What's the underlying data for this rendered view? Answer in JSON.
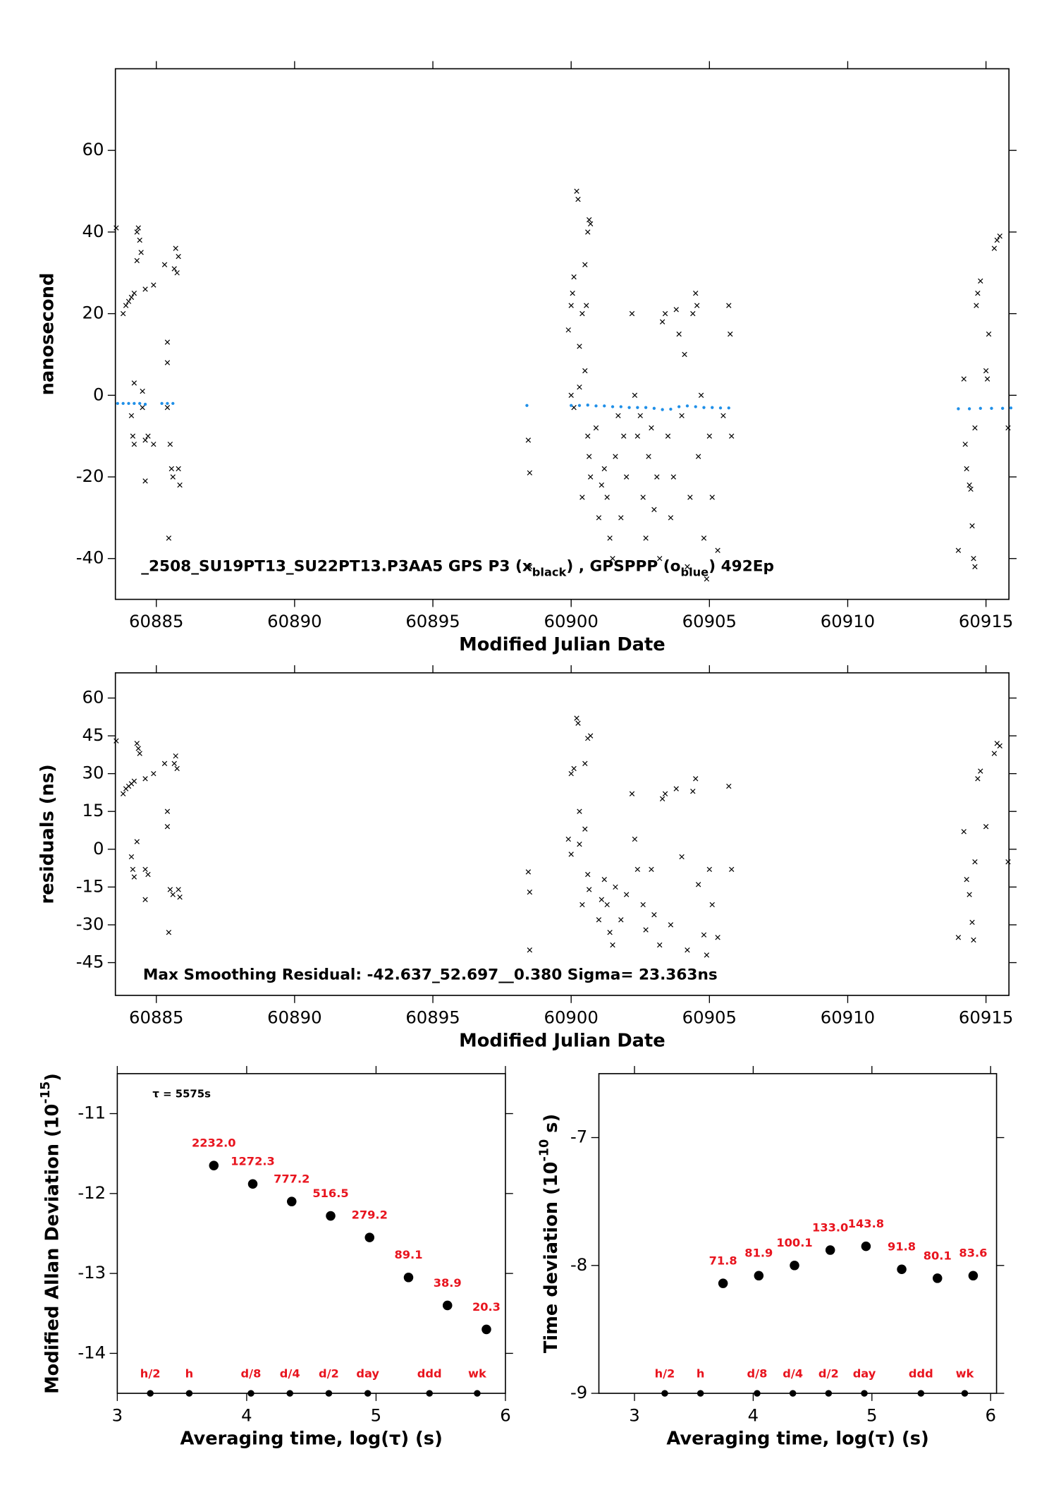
{
  "chart_data": [
    {
      "type": "scatter",
      "xlabel": "Modified Julian Date",
      "ylabel": "nanosecond",
      "xlim": [
        60883.52,
        60915.83
      ],
      "ylim": [
        -50,
        80
      ],
      "xticks": [
        60885,
        60890,
        60895,
        60900,
        60905,
        60910,
        60915
      ],
      "yticks": [
        -40,
        -20,
        0,
        20,
        40,
        60
      ],
      "annotation": [
        {
          "text": "_2508_SU19PT13_SU22PT13.P3AA5   GPS P3 (x"
        },
        {
          "text": "black",
          "sub": true
        },
        {
          "text": ") , GPSPPP (o"
        },
        {
          "text": "blue",
          "sub": true
        },
        {
          "text": ")  492Ep"
        }
      ],
      "series": [
        {
          "color": "#000000",
          "marker": "x",
          "x": [
            60883.55,
            60883.8,
            60883.9,
            60884.0,
            60884.1,
            60884.2,
            60884.3,
            60884.35,
            60884.4,
            60884.45,
            60884.3,
            60884.6,
            60884.9,
            60885.3,
            60885.7,
            60885.8,
            60885.75,
            60885.65,
            60884.2,
            60884.1,
            60884.15,
            60884.2,
            60884.5,
            60884.6,
            60884.7,
            60884.9,
            60884.6,
            60885.4,
            60885.4,
            60885.5,
            60885.55,
            60885.6,
            60885.8,
            60885.85,
            60885.45,
            60884.5,
            60885.4,
            60898.45,
            60898.5,
            60898.5,
            60899.9,
            60900.0,
            60900.05,
            60900.1,
            60900.2,
            60900.25,
            60900.5,
            60900.6,
            60900.7,
            60900.65,
            60900.3,
            60900.4,
            60900.55,
            60900.0,
            60900.1,
            60900.3,
            60900.5,
            60900.6,
            60900.65,
            60900.7,
            60900.4,
            60900.9,
            60901.0,
            60901.1,
            60901.2,
            60901.3,
            60901.4,
            60901.5,
            60901.6,
            60901.7,
            60901.8,
            60901.9,
            60902.0,
            60902.2,
            60902.3,
            60902.4,
            60902.5,
            60902.6,
            60902.7,
            60902.8,
            60902.9,
            60903.0,
            60903.1,
            60903.2,
            60903.3,
            60903.4,
            60903.5,
            60903.6,
            60903.7,
            60903.8,
            60903.9,
            60904.0,
            60904.1,
            60904.2,
            60904.3,
            60904.4,
            60904.5,
            60904.55,
            60904.6,
            60904.7,
            60904.8,
            60904.9,
            60905.0,
            60905.1,
            60905.3,
            60905.5,
            60905.7,
            60905.8,
            60905.75,
            60914.0,
            60914.2,
            60914.25,
            60914.3,
            60914.4,
            60914.45,
            60914.5,
            60914.6,
            60914.55,
            60914.6,
            60914.65,
            60914.7,
            60914.8,
            60915.0,
            60915.05,
            60915.1,
            60915.3,
            60915.4,
            60915.5,
            60915.8
          ],
          "values": [
            41,
            20,
            22,
            23,
            24,
            25,
            40,
            41,
            38,
            35,
            33,
            26,
            27,
            32,
            36,
            34,
            30,
            31,
            3,
            -5,
            -10,
            -12,
            -3,
            -11,
            -10,
            -12,
            -21,
            13,
            8,
            -12,
            -18,
            -20,
            -18,
            -22,
            -35,
            1,
            -3,
            -11,
            -19,
            -42,
            16,
            22,
            25,
            29,
            50,
            48,
            32,
            40,
            42,
            43,
            12,
            20,
            22,
            0,
            -3,
            2,
            6,
            -10,
            -15,
            -20,
            -25,
            -8,
            -30,
            -22,
            -18,
            -25,
            -35,
            -40,
            -15,
            -5,
            -30,
            -10,
            -20,
            20,
            0,
            -10,
            -5,
            -25,
            -35,
            -15,
            -8,
            -28,
            -20,
            -40,
            18,
            20,
            -10,
            -30,
            -20,
            21,
            15,
            -5,
            10,
            -42,
            -25,
            20,
            25,
            22,
            -15,
            0,
            -35,
            -45,
            -10,
            -25,
            -38,
            -5,
            22,
            -10,
            15,
            -38,
            4,
            -12,
            -18,
            -22,
            -23,
            -32,
            -8,
            -40,
            -42,
            22,
            25,
            28,
            6,
            4,
            15,
            36,
            38,
            39,
            -8
          ]
        },
        {
          "color": "#1f8fe8",
          "marker": "dot",
          "x": [
            60883.6,
            60883.8,
            60884.0,
            60884.2,
            60884.4,
            60884.6,
            60885.2,
            60885.4,
            60885.6,
            60898.4,
            60900.0,
            60900.3,
            60900.6,
            60900.9,
            60901.2,
            60901.5,
            60901.8,
            60902.1,
            60902.4,
            60902.7,
            60903.0,
            60903.3,
            60903.6,
            60903.9,
            60904.2,
            60904.5,
            60904.8,
            60905.1,
            60905.4,
            60905.7,
            60914.0,
            60914.4,
            60914.8,
            60915.2,
            60915.6,
            60915.9
          ],
          "values": [
            -2,
            -2,
            -2,
            -2,
            -2,
            -2.2,
            -2,
            -2,
            -2,
            -2.5,
            -2.5,
            -2.5,
            -2.4,
            -2.6,
            -2.6,
            -2.8,
            -2.8,
            -3,
            -3,
            -3,
            -3.2,
            -3.5,
            -3.4,
            -2.8,
            -2.6,
            -2.8,
            -3,
            -3,
            -3.1,
            -3.1,
            -3.3,
            -3.3,
            -3.2,
            -3.2,
            -3.2,
            -3.1
          ]
        }
      ]
    },
    {
      "type": "scatter",
      "xlabel": "Modified Julian Date",
      "ylabel": "residuals (ns)",
      "xlim": [
        60883.52,
        60915.83
      ],
      "ylim": [
        -58,
        70
      ],
      "xticks": [
        60885,
        60890,
        60895,
        60900,
        60905,
        60910,
        60915
      ],
      "yticks": [
        -45,
        -30,
        -15,
        0,
        15,
        30,
        45,
        60
      ],
      "annotation": [
        {
          "text": "Max Smoothing Residual: -42.637_52.697__0.380  Sigma= 23.363ns"
        }
      ],
      "series": [
        {
          "color": "#000000",
          "marker": "x",
          "x": [
            60883.55,
            60883.8,
            60883.9,
            60884.0,
            60884.1,
            60884.2,
            60884.3,
            60884.35,
            60884.4,
            60884.6,
            60884.9,
            60885.3,
            60885.7,
            60885.75,
            60885.65,
            60884.1,
            60884.15,
            60884.2,
            60884.3,
            60884.6,
            60884.7,
            60884.6,
            60885.4,
            60885.4,
            60885.45,
            60885.5,
            60885.6,
            60885.8,
            60885.85,
            60898.45,
            60898.5,
            60898.5,
            60899.9,
            60900.0,
            60900.1,
            60900.2,
            60900.25,
            60900.5,
            60900.6,
            60900.7,
            60900.3,
            60900.0,
            60900.3,
            60900.5,
            60900.6,
            60900.65,
            60900.4,
            60901.0,
            60901.1,
            60901.2,
            60901.3,
            60901.4,
            60901.5,
            60901.6,
            60901.8,
            60902.0,
            60902.2,
            60902.3,
            60902.4,
            60902.6,
            60902.7,
            60902.9,
            60903.0,
            60903.2,
            60903.3,
            60903.4,
            60903.6,
            60903.8,
            60904.0,
            60904.2,
            60904.4,
            60904.5,
            60904.6,
            60904.8,
            60904.9,
            60905.0,
            60905.1,
            60905.3,
            60905.7,
            60905.8,
            60914.0,
            60914.2,
            60914.3,
            60914.4,
            60914.5,
            60914.55,
            60914.6,
            60914.7,
            60914.8,
            60915.0,
            60915.3,
            60915.4,
            60915.5,
            60915.8
          ],
          "values": [
            43,
            22,
            24,
            25,
            26,
            27,
            42,
            40,
            38,
            28,
            30,
            34,
            37,
            32,
            34,
            -3,
            -8,
            -11,
            3,
            -8,
            -10,
            -20,
            15,
            9,
            -33,
            -16,
            -18,
            -16,
            -19,
            -9,
            -17,
            -40,
            4,
            30,
            32,
            52,
            50,
            34,
            44,
            45,
            15,
            -2,
            2,
            8,
            -10,
            -16,
            -22,
            -28,
            -20,
            -12,
            -22,
            -33,
            -38,
            -15,
            -28,
            -18,
            22,
            4,
            -8,
            -22,
            -32,
            -8,
            -26,
            -38,
            20,
            22,
            -30,
            24,
            -3,
            -40,
            23,
            28,
            -14,
            -34,
            -42,
            -8,
            -22,
            -35,
            25,
            -8,
            -35,
            7,
            -12,
            -18,
            -29,
            -36,
            -5,
            28,
            31,
            9,
            38,
            42,
            41,
            -5
          ]
        }
      ]
    },
    {
      "type": "scatter",
      "xlabel": "Averaging time, log(τ) (s)",
      "ylabel": "Modified Allan Deviation (10",
      "ylabel_sup": "-15",
      "ylabel_end": ")",
      "xlim": [
        3,
        6
      ],
      "ylim": [
        -14.5,
        -10.5
      ],
      "xticks": [
        3,
        4,
        5,
        6
      ],
      "yticks": [
        -14,
        -13,
        -12,
        -11
      ],
      "annotation": [
        {
          "text": "τ = 5575s"
        }
      ],
      "series": [
        {
          "color": "#000000",
          "marker": "big",
          "x": [
            3.746,
            4.047,
            4.348,
            4.649,
            4.95,
            5.251,
            5.552,
            5.853
          ],
          "values": [
            -11.65,
            -11.88,
            -12.1,
            -12.28,
            -12.55,
            -13.05,
            -13.4,
            -13.7
          ],
          "point_labels": [
            "2232.0",
            "1272.3",
            "777.2",
            "516.5",
            "279.2",
            "89.1",
            "38.9",
            "20.3"
          ]
        }
      ],
      "scale_marks": {
        "x": [
          3.255,
          3.556,
          4.033,
          4.334,
          4.635,
          4.936,
          5.413,
          5.782
        ],
        "labels": [
          "h/2",
          "h",
          "d/8",
          "d/4",
          "d/2",
          "day",
          "ddd",
          "wk"
        ]
      }
    },
    {
      "type": "scatter",
      "xlabel": "Averaging time, log(τ) (s)",
      "ylabel": "Time deviation (10",
      "ylabel_sup": "-10",
      "ylabel_end": " s)",
      "xlim": [
        2.7,
        6.05
      ],
      "ylim": [
        -9,
        -6.5
      ],
      "xticks": [
        3,
        4,
        5,
        6
      ],
      "yticks": [
        -9,
        -8,
        -7
      ],
      "series": [
        {
          "color": "#000000",
          "marker": "big",
          "x": [
            3.746,
            4.047,
            4.348,
            4.649,
            4.95,
            5.251,
            5.552,
            5.853
          ],
          "values": [
            -8.14,
            -8.08,
            -8.0,
            -7.88,
            -7.85,
            -8.03,
            -8.1,
            -8.08
          ],
          "point_labels": [
            "71.8",
            "81.9",
            "100.1",
            "133.0",
            "143.8",
            "91.8",
            "80.1",
            "83.6"
          ]
        }
      ],
      "scale_marks": {
        "x": [
          3.255,
          3.556,
          4.033,
          4.334,
          4.635,
          4.936,
          5.413,
          5.782
        ],
        "labels": [
          "h/2",
          "h",
          "d/8",
          "d/4",
          "d/2",
          "day",
          "ddd",
          "wk"
        ]
      }
    }
  ]
}
